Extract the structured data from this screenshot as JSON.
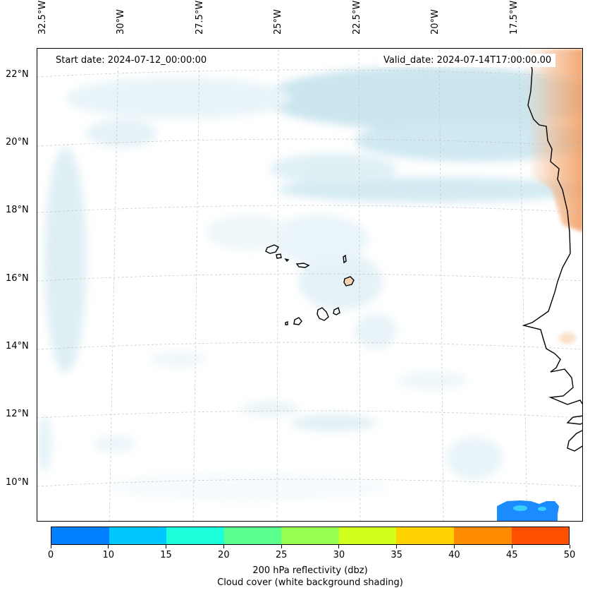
{
  "header": {
    "start_date": "Start date: 2024-07-12_00:00:00",
    "valid_date": "Valid_date: 2024-07-14T17:00:00.00"
  },
  "longitude_labels": [
    "32.5°W",
    "30°W",
    "27.5°W",
    "25°W",
    "22.5°W",
    "20°W",
    "17.5°W"
  ],
  "latitude_labels": [
    "22°N",
    "20°N",
    "18°N",
    "16°N",
    "14°N",
    "12°N",
    "10°N"
  ],
  "colorbar": {
    "ticks": [
      "0",
      "10",
      "15",
      "20",
      "25",
      "30",
      "35",
      "40",
      "45",
      "50"
    ],
    "colors": [
      "#0080ff",
      "#00c8ff",
      "#1effdc",
      "#5aff8c",
      "#96ff50",
      "#d2ff1e",
      "#ffd200",
      "#ff8c00",
      "#ff5000"
    ],
    "label": "200 hPa reflectivity (dbz)",
    "sublabel": "Cloud cover (white background shading)"
  },
  "colors": {
    "cloud_shading": "#add8e6",
    "land_warm_shading": "#f4a460",
    "coastline": "#000000",
    "gridline": "#c8c8c8"
  }
}
